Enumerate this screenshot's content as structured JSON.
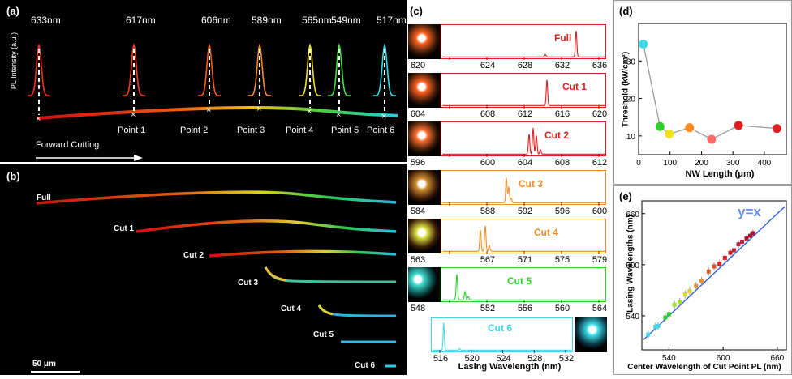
{
  "panel_a": {
    "label": "(a)",
    "ylabel": "PL Intensity (a.u.)",
    "peaks": [
      {
        "wl": "633nm",
        "color": "#ff2a1a"
      },
      {
        "wl": "617nm",
        "color": "#ff3a1f"
      },
      {
        "wl": "606nm",
        "color": "#ff5a10"
      },
      {
        "wl": "589nm",
        "color": "#ff8a1a"
      },
      {
        "wl": "565nm",
        "color": "#f3e21a"
      },
      {
        "wl": "549nm",
        "color": "#3de03a"
      },
      {
        "wl": "517nm",
        "color": "#28e0e8"
      }
    ],
    "points": [
      "Point 1",
      "Point 2",
      "Point 3",
      "Point 4",
      "Point 5",
      "Point 6"
    ],
    "arrow_label": "Forward Cutting"
  },
  "panel_b": {
    "label": "(b)",
    "wires": [
      "Full",
      "Cut 1",
      "Cut 2",
      "Cut 3",
      "Cut 4",
      "Cut 5",
      "Cut 6"
    ],
    "scale": "50 μm"
  },
  "panel_c": {
    "label": "(c)",
    "xlabel": "Lasing Wavelength (nm)",
    "rows": [
      {
        "name": "Full",
        "color": "#e02020",
        "ticks": [
          "620",
          "624",
          "628",
          "632",
          "636"
        ],
        "peaks": [
          [
            0.82,
            0.92
          ],
          [
            0.63,
            0.08
          ]
        ]
      },
      {
        "name": "Cut 1",
        "color": "#e02020",
        "ticks": [
          "604",
          "608",
          "612",
          "616",
          "620"
        ],
        "peaks": [
          [
            0.64,
            0.9
          ]
        ]
      },
      {
        "name": "Cut 2",
        "color": "#e02020",
        "ticks": [
          "596",
          "600",
          "604",
          "608",
          "612"
        ],
        "peaks": [
          [
            0.53,
            0.7
          ],
          [
            0.555,
            0.9
          ],
          [
            0.575,
            0.65
          ],
          [
            0.6,
            0.15
          ]
        ]
      },
      {
        "name": "Cut 3",
        "color": "#e8902a",
        "ticks": [
          "584",
          "588",
          "592",
          "596",
          "600"
        ],
        "peaks": [
          [
            0.39,
            0.85
          ],
          [
            0.405,
            0.55
          ],
          [
            0.42,
            0.15
          ]
        ]
      },
      {
        "name": "Cut 4",
        "color": "#e8902a",
        "ticks": [
          "563",
          "567",
          "571",
          "575",
          "579"
        ],
        "peaks": [
          [
            0.23,
            0.75
          ],
          [
            0.26,
            0.9
          ],
          [
            0.285,
            0.2
          ]
        ]
      },
      {
        "name": "Cut 5",
        "color": "#2ecf2e",
        "ticks": [
          "548",
          "552",
          "556",
          "560",
          "564"
        ],
        "peaks": [
          [
            0.085,
            0.9
          ],
          [
            0.135,
            0.28
          ],
          [
            0.155,
            0.12
          ]
        ]
      },
      {
        "name": "Cut 6",
        "color": "#3fd8e6",
        "ticks": [
          "516",
          "520",
          "524",
          "528",
          "532"
        ],
        "peaks": [
          [
            0.075,
            0.95
          ],
          [
            0.19,
            0.05
          ]
        ]
      }
    ]
  },
  "panel_d": {
    "label": "(d)",
    "ylabel": "Threshold (kW/cm²)",
    "xlabel": "NW Length (μm)",
    "yticks": [
      "10",
      "20",
      "30"
    ],
    "xticks": [
      "0",
      "100",
      "200",
      "300",
      "400"
    ]
  },
  "panel_e": {
    "label": "(e)",
    "ylabel": "Lasing Wavelengths (nm)",
    "xlabel": "Center Wavelength of Cut Point PL (nm)",
    "fit": "y=x",
    "yticks": [
      "540",
      "600",
      "660"
    ],
    "xticks": [
      "540",
      "600",
      "660"
    ]
  },
  "chart_data": [
    {
      "type": "scatter",
      "xlabel": "NW Length (μm)",
      "ylabel": "Threshold (kW/cm²)",
      "xlim": [
        0,
        470
      ],
      "ylim": [
        5,
        40
      ],
      "x": [
        15,
        68,
        98,
        162,
        232,
        318,
        440
      ],
      "y": [
        34.5,
        12.5,
        10.5,
        12.2,
        9.1,
        12.8,
        12.0
      ],
      "colors": [
        "#3fd8e6",
        "#2ecf2e",
        "#f3e21a",
        "#ff8a1a",
        "#ff6a6a",
        "#e02020",
        "#e02020"
      ]
    },
    {
      "type": "scatter",
      "xlabel": "Center Wavelength of Cut Point PL (nm)",
      "ylabel": "Lasing Wavelengths (nm)",
      "xlim": [
        510,
        670
      ],
      "ylim": [
        500,
        675
      ],
      "x": [
        517,
        525,
        528,
        536,
        540,
        546,
        552,
        558,
        563,
        570,
        576,
        584,
        590,
        596,
        602,
        608,
        612,
        617,
        621,
        626,
        630,
        633
      ],
      "y": [
        518,
        527,
        528,
        538,
        542,
        553,
        556,
        565,
        569,
        575,
        581,
        592,
        598,
        601,
        608,
        614,
        617,
        624,
        627,
        631,
        634,
        637
      ],
      "fit_line": "y=x"
    }
  ]
}
